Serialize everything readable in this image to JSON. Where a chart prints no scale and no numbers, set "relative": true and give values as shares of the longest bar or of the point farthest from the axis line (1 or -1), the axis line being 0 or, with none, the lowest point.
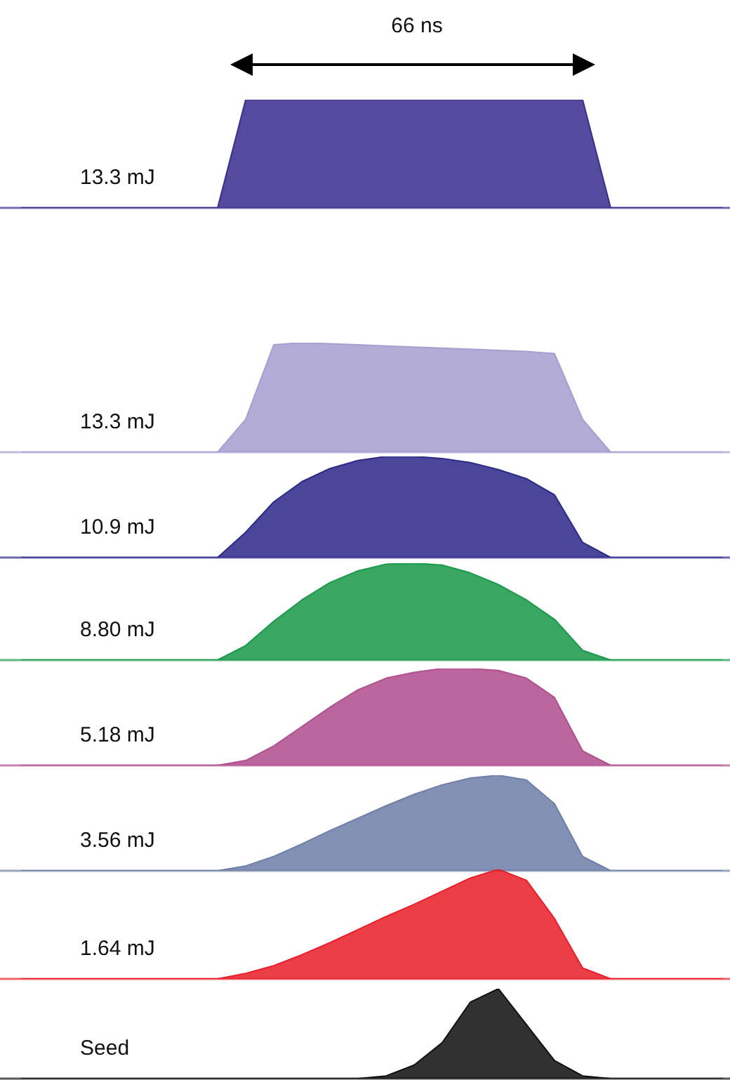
{
  "chart_data": [
    {
      "type": "area",
      "relative": true,
      "categories": [
        null,
        null,
        null,
        null,
        null,
        null,
        null,
        null,
        null,
        null,
        null,
        null,
        null,
        null,
        null,
        null,
        null,
        null,
        null,
        null,
        null,
        null,
        null,
        null,
        null,
        null
      ],
      "color": "#3a2f8f",
      "values": [
        0,
        0,
        0,
        0,
        0,
        0,
        0,
        0,
        1,
        1,
        1,
        1,
        1,
        1,
        1,
        1,
        1,
        1,
        1,
        1,
        1,
        0,
        0,
        0,
        0,
        0
      ],
      "annotations": [
        "13.3 mJ",
        "66 ns"
      ]
    },
    {
      "type": "area",
      "relative": true,
      "categories": [
        null,
        null,
        null,
        null,
        null,
        null,
        null,
        null,
        null,
        null,
        null,
        null,
        null,
        null,
        null,
        null,
        null,
        null,
        null,
        null,
        null,
        null,
        null,
        null,
        null,
        null
      ],
      "color": "#a79fd0",
      "values": [
        0,
        0,
        0,
        0,
        0,
        0,
        0,
        0,
        0.3,
        0.98,
        1,
        0.99,
        0.98,
        0.97,
        0.96,
        0.95,
        0.94,
        0.93,
        0.92,
        0.9,
        0.3,
        0,
        0,
        0,
        0,
        0
      ],
      "annotations": [
        "13.3 mJ"
      ]
    },
    {
      "type": "area",
      "relative": true,
      "categories": [
        null,
        null,
        null,
        null,
        null,
        null,
        null,
        null,
        null,
        null,
        null,
        null,
        null,
        null,
        null,
        null,
        null,
        null,
        null,
        null,
        null,
        null,
        null,
        null,
        null,
        null
      ],
      "color": "#2e2a8a",
      "values": [
        0,
        0,
        0,
        0,
        0,
        0,
        0,
        0,
        0.25,
        0.55,
        0.75,
        0.88,
        0.96,
        1,
        1,
        0.98,
        0.94,
        0.87,
        0.78,
        0.62,
        0.15,
        0,
        0,
        0,
        0,
        0
      ],
      "annotations": [
        "10.9 mJ"
      ]
    },
    {
      "type": "area",
      "relative": true,
      "categories": [
        null,
        null,
        null,
        null,
        null,
        null,
        null,
        null,
        null,
        null,
        null,
        null,
        null,
        null,
        null,
        null,
        null,
        null,
        null,
        null,
        null,
        null,
        null,
        null,
        null,
        null
      ],
      "color": "#1a9a4a",
      "values": [
        0,
        0,
        0,
        0,
        0,
        0,
        0,
        0,
        0.15,
        0.4,
        0.62,
        0.8,
        0.92,
        0.99,
        1,
        0.98,
        0.9,
        0.78,
        0.62,
        0.42,
        0.1,
        0,
        0,
        0,
        0,
        0
      ],
      "annotations": [
        "8.80 mJ"
      ]
    },
    {
      "type": "area",
      "relative": true,
      "categories": [
        null,
        null,
        null,
        null,
        null,
        null,
        null,
        null,
        null,
        null,
        null,
        null,
        null,
        null,
        null,
        null,
        null,
        null,
        null,
        null,
        null,
        null,
        null,
        null,
        null,
        null
      ],
      "color": "#b0508e",
      "values": [
        0,
        0,
        0,
        0,
        0,
        0,
        0,
        0,
        0.05,
        0.2,
        0.4,
        0.6,
        0.78,
        0.9,
        0.96,
        1,
        1,
        0.98,
        0.9,
        0.7,
        0.15,
        0,
        0,
        0,
        0,
        0
      ],
      "annotations": [
        "5.18 mJ"
      ]
    },
    {
      "type": "area",
      "relative": true,
      "categories": [
        null,
        null,
        null,
        null,
        null,
        null,
        null,
        null,
        null,
        null,
        null,
        null,
        null,
        null,
        null,
        null,
        null,
        null,
        null,
        null,
        null,
        null,
        null,
        null,
        null,
        null
      ],
      "color": "#6f7fa8",
      "values": [
        0,
        0,
        0,
        0,
        0,
        0,
        0,
        0,
        0.05,
        0.15,
        0.28,
        0.42,
        0.55,
        0.68,
        0.8,
        0.9,
        0.97,
        1,
        0.95,
        0.7,
        0.15,
        0,
        0,
        0,
        0,
        0
      ],
      "annotations": [
        "3.56 mJ"
      ]
    },
    {
      "type": "area",
      "relative": true,
      "categories": [
        null,
        null,
        null,
        null,
        null,
        null,
        null,
        null,
        null,
        null,
        null,
        null,
        null,
        null,
        null,
        null,
        null,
        null,
        null,
        null,
        null,
        null,
        null,
        null,
        null,
        null
      ],
      "color": "#e8202a",
      "values": [
        0,
        0,
        0,
        0,
        0,
        0,
        0,
        0,
        0.05,
        0.12,
        0.22,
        0.33,
        0.45,
        0.57,
        0.68,
        0.8,
        0.92,
        1,
        0.9,
        0.55,
        0.1,
        0,
        0,
        0,
        0,
        0
      ],
      "annotations": [
        "1.64 mJ"
      ]
    },
    {
      "type": "area",
      "relative": true,
      "categories": [
        null,
        null,
        null,
        null,
        null,
        null,
        null,
        null,
        null,
        null,
        null,
        null,
        null,
        null,
        null,
        null,
        null,
        null,
        null,
        null,
        null,
        null,
        null,
        null,
        null,
        null
      ],
      "color": "#111111",
      "values": [
        0,
        0,
        0,
        0,
        0,
        0,
        0,
        0,
        0,
        0,
        0,
        0,
        0,
        0.03,
        0.15,
        0.4,
        0.85,
        1,
        0.6,
        0.2,
        0.03,
        0,
        0,
        0,
        0,
        0
      ],
      "annotations": [
        "Seed"
      ]
    }
  ]
}
